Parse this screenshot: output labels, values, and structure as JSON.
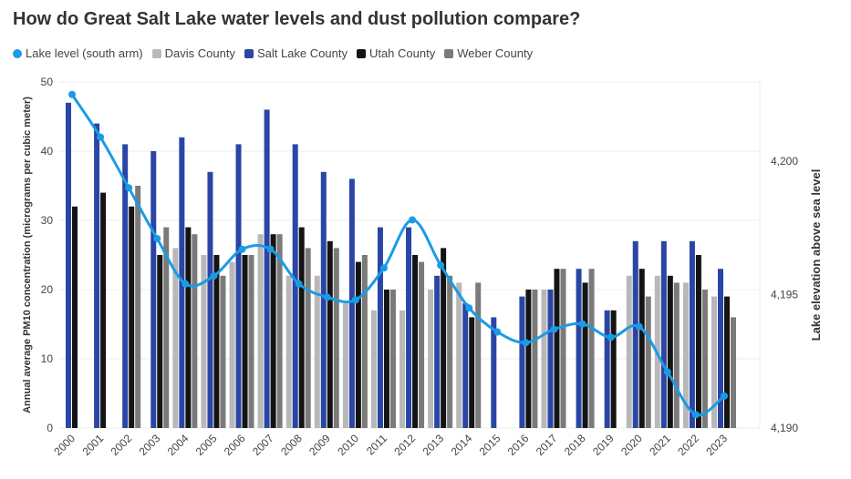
{
  "chart_data": {
    "type": "bar",
    "title": "How do Great Salt Lake water levels and dust pollution compare?",
    "ylabel": "Annual average PM10 concentration (micrograms per cubic meter)",
    "y2label": "Lake elevation above sea level",
    "ylim": [
      0,
      50
    ],
    "yticks": [
      0,
      10,
      20,
      30,
      40,
      50
    ],
    "y2lim": [
      4190,
      4203
    ],
    "y2ticks": [
      "4,190",
      "4,195",
      "4,200"
    ],
    "y2tickvalues": [
      4190,
      4195,
      4200
    ],
    "grid": true,
    "legend_placement": "top-left",
    "categories": [
      "2000",
      "2001",
      "2002",
      "2003",
      "2004",
      "2005",
      "2006",
      "2007",
      "2008",
      "2009",
      "2010",
      "2011",
      "2012",
      "2013",
      "2014",
      "2015",
      "2016",
      "2017",
      "2018",
      "2019",
      "2020",
      "2021",
      "2022",
      "2023"
    ],
    "series": [
      {
        "name": "Davis County",
        "color": "#b8b8b8",
        "values": [
          null,
          null,
          null,
          null,
          26,
          25,
          24,
          28,
          22,
          22,
          18,
          17,
          17,
          20,
          21,
          null,
          null,
          20,
          null,
          null,
          22,
          22,
          21,
          19
        ]
      },
      {
        "name": "Salt Lake County",
        "color": "#2a45a5",
        "values": [
          47,
          44,
          41,
          40,
          42,
          37,
          41,
          46,
          41,
          37,
          36,
          29,
          29,
          22,
          18,
          16,
          19,
          20,
          23,
          17,
          27,
          27,
          27,
          23
        ]
      },
      {
        "name": "Utah County",
        "color": "#141414",
        "values": [
          32,
          34,
          32,
          25,
          29,
          25,
          25,
          28,
          29,
          27,
          24,
          20,
          25,
          26,
          16,
          null,
          20,
          23,
          21,
          17,
          23,
          22,
          25,
          19
        ]
      },
      {
        "name": "Weber County",
        "color": "#7a7a7a",
        "values": [
          null,
          null,
          35,
          29,
          28,
          22,
          25,
          28,
          26,
          26,
          25,
          20,
          24,
          22,
          21,
          null,
          20,
          23,
          23,
          null,
          19,
          21,
          20,
          16
        ]
      }
    ],
    "line_series": {
      "name": "Lake level (south arm)",
      "color": "#1a9be6",
      "axis": "right",
      "values": [
        4202.5,
        4200.9,
        4199.0,
        4197.1,
        4195.4,
        4195.7,
        4196.7,
        4196.7,
        4195.4,
        4194.9,
        4194.8,
        4196.0,
        4197.8,
        4196.1,
        4194.5,
        4193.6,
        4193.2,
        4193.7,
        4193.9,
        4193.4,
        4193.8,
        4192.1,
        4190.5,
        4191.2
      ]
    }
  }
}
